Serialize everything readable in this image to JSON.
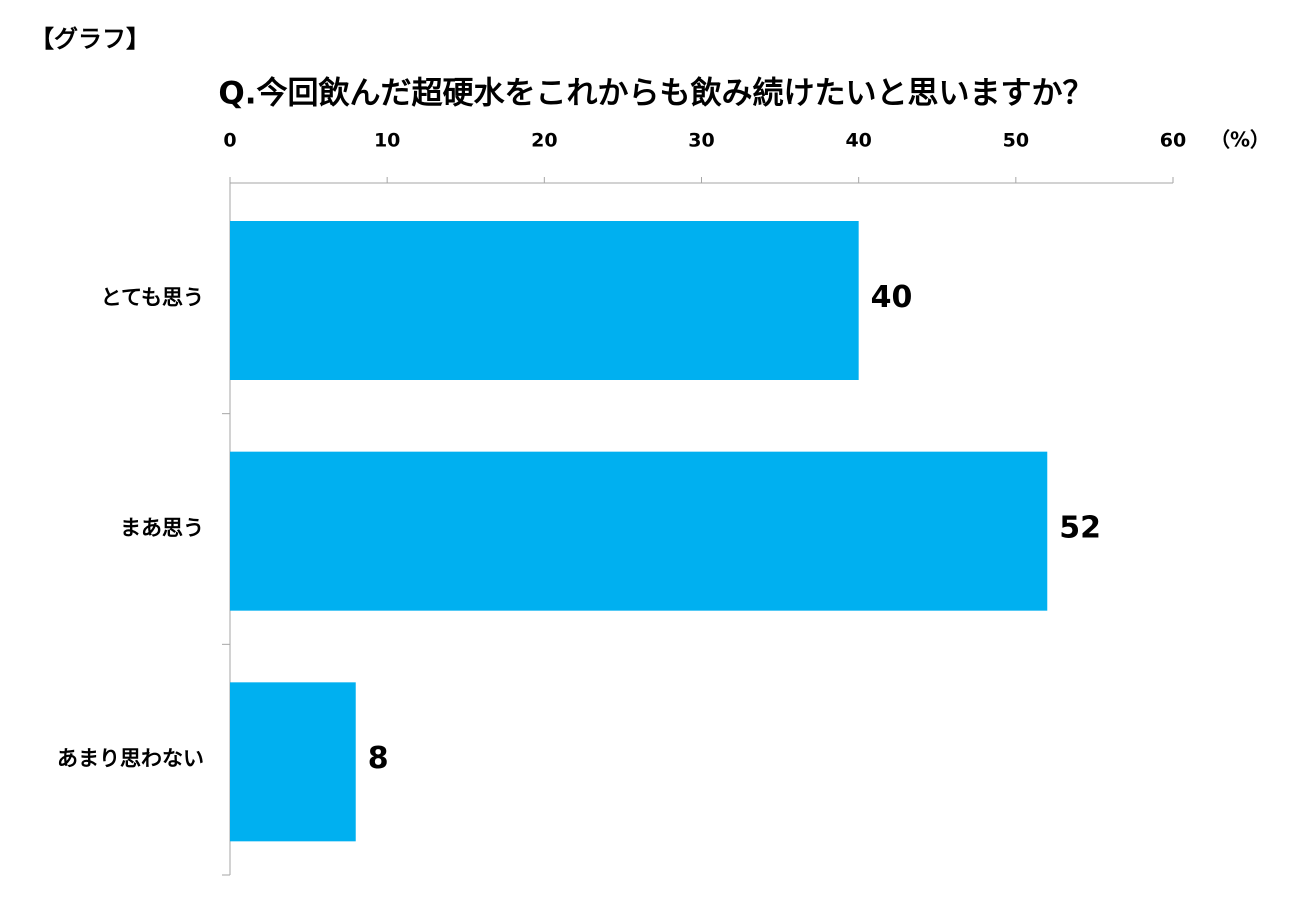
{
  "chart_data": {
    "type": "bar",
    "label": "【グラフ】",
    "title": "Q.今回飲んだ超硬水をこれからも飲み続けたいと思いますか？",
    "x_unit": "（%）",
    "categories": [
      "とても思う",
      "まあ思う",
      "あまり思わない"
    ],
    "values": [
      40,
      52,
      8
    ],
    "color": "#00b0f0",
    "xlim": [
      0,
      60
    ],
    "xticks": [
      0,
      10,
      20,
      30,
      40,
      50,
      60
    ]
  }
}
